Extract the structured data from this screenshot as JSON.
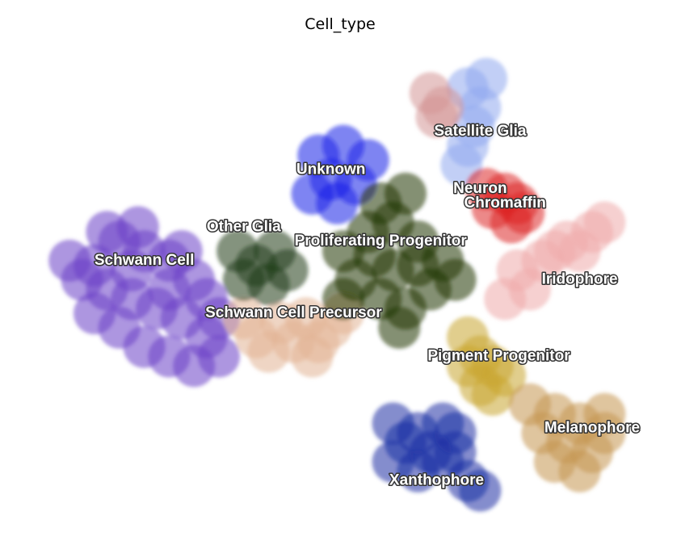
{
  "chart_data": {
    "type": "scatter",
    "title": "Cell_type",
    "xlabel": "",
    "ylabel": "",
    "grid": false,
    "legend": "on data",
    "xlim": [
      0,
      100
    ],
    "ylim": [
      0,
      100
    ],
    "series": [
      {
        "name": "Schwann Cell",
        "color": "#6a3fc6",
        "points": [
          [
            10,
            55
          ],
          [
            14,
            60
          ],
          [
            18,
            58
          ],
          [
            22,
            56
          ],
          [
            26,
            52
          ],
          [
            12,
            50
          ],
          [
            16,
            48
          ],
          [
            20,
            46
          ],
          [
            24,
            44
          ],
          [
            28,
            40
          ],
          [
            30,
            36
          ],
          [
            26,
            34
          ],
          [
            22,
            36
          ],
          [
            18,
            38
          ],
          [
            14,
            42
          ],
          [
            10,
            45
          ],
          [
            8,
            52
          ],
          [
            12,
            62
          ],
          [
            17,
            63
          ],
          [
            24,
            58
          ],
          [
            28,
            48
          ],
          [
            6,
            56
          ],
          [
            16,
            54
          ],
          [
            22,
            50
          ],
          [
            30,
            44
          ]
        ]
      },
      {
        "name": "Schwann Cell Precursor",
        "color": "#e2b394",
        "points": [
          [
            36,
            40
          ],
          [
            40,
            43
          ],
          [
            44,
            44
          ],
          [
            48,
            42
          ],
          [
            38,
            37
          ],
          [
            42,
            39
          ],
          [
            46,
            39
          ],
          [
            34,
            44
          ],
          [
            50,
            45
          ],
          [
            45,
            36
          ]
        ]
      },
      {
        "name": "Other Glia",
        "color": "#1f3c1a",
        "points": [
          [
            33,
            58
          ],
          [
            36,
            55
          ],
          [
            39,
            58
          ],
          [
            34,
            52
          ],
          [
            38,
            51
          ],
          [
            41,
            54
          ]
        ]
      },
      {
        "name": "Unknown",
        "color": "#1a1fe8",
        "points": [
          [
            46,
            78
          ],
          [
            50,
            80
          ],
          [
            54,
            77
          ],
          [
            48,
            73
          ],
          [
            52,
            72
          ],
          [
            45,
            70
          ],
          [
            49,
            68
          ]
        ]
      },
      {
        "name": "Proliferating Progenitor",
        "color": "#203500",
        "points": [
          [
            50,
            58
          ],
          [
            54,
            62
          ],
          [
            58,
            64
          ],
          [
            62,
            60
          ],
          [
            66,
            56
          ],
          [
            64,
            50
          ],
          [
            60,
            46
          ],
          [
            56,
            48
          ],
          [
            52,
            52
          ],
          [
            58,
            54
          ],
          [
            62,
            55
          ],
          [
            55,
            57
          ],
          [
            56,
            68
          ],
          [
            60,
            70
          ],
          [
            68,
            52
          ],
          [
            50,
            48
          ],
          [
            59,
            42
          ]
        ]
      },
      {
        "name": "Satellite Glia",
        "color": "#90a8ee",
        "points": [
          [
            70,
            92
          ],
          [
            72,
            88
          ],
          [
            71,
            84
          ],
          [
            70,
            80
          ],
          [
            69,
            76
          ],
          [
            73,
            94
          ]
        ]
      },
      {
        "name": "Neuron",
        "color": "#d49696",
        "points": [
          [
            64,
            91
          ],
          [
            66,
            88
          ],
          [
            65,
            86
          ]
        ]
      },
      {
        "name": "Chromaffin",
        "color": "#dd2424",
        "points": [
          [
            73,
            71
          ],
          [
            76,
            70
          ],
          [
            78,
            68
          ],
          [
            79,
            66
          ],
          [
            74,
            67
          ],
          [
            77,
            64
          ]
        ]
      },
      {
        "name": "Iridophore",
        "color": "#eeaaaa",
        "points": [
          [
            78,
            54
          ],
          [
            82,
            56
          ],
          [
            86,
            60
          ],
          [
            90,
            62
          ],
          [
            92,
            64
          ],
          [
            84,
            58
          ],
          [
            80,
            50
          ],
          [
            76,
            48
          ],
          [
            88,
            58
          ]
        ]
      },
      {
        "name": "Pigment Progenitor",
        "color": "#c9a530",
        "points": [
          [
            70,
            40
          ],
          [
            72,
            36
          ],
          [
            74,
            34
          ],
          [
            76,
            32
          ],
          [
            72,
            30
          ],
          [
            74,
            28
          ],
          [
            70,
            34
          ]
        ]
      },
      {
        "name": "Melanophore",
        "color": "#c59650",
        "points": [
          [
            80,
            26
          ],
          [
            84,
            24
          ],
          [
            88,
            22
          ],
          [
            92,
            20
          ],
          [
            86,
            18
          ],
          [
            90,
            16
          ],
          [
            84,
            14
          ],
          [
            88,
            12
          ],
          [
            82,
            20
          ],
          [
            92,
            24
          ]
        ]
      },
      {
        "name": "Xanthophore",
        "color": "#1c2fa4",
        "points": [
          [
            58,
            22
          ],
          [
            62,
            20
          ],
          [
            66,
            22
          ],
          [
            68,
            20
          ],
          [
            60,
            18
          ],
          [
            64,
            16
          ],
          [
            58,
            14
          ],
          [
            62,
            12
          ],
          [
            66,
            14
          ],
          [
            70,
            10
          ],
          [
            72,
            8
          ],
          [
            68,
            16
          ]
        ]
      }
    ],
    "labels": [
      {
        "text": "Satellite Glia",
        "x": 72,
        "y": 83
      },
      {
        "text": "Unknown",
        "x": 48,
        "y": 75
      },
      {
        "text": "Neuron",
        "x": 72,
        "y": 71
      },
      {
        "text": "Chromaffin",
        "x": 76,
        "y": 68
      },
      {
        "text": "Other Glia",
        "x": 34,
        "y": 63
      },
      {
        "text": "Proliferating Progenitor",
        "x": 56,
        "y": 60
      },
      {
        "text": "Schwann Cell",
        "x": 18,
        "y": 56
      },
      {
        "text": "Iridophore",
        "x": 88,
        "y": 52
      },
      {
        "text": "Schwann Cell Precursor",
        "x": 42,
        "y": 45
      },
      {
        "text": "Pigment Progenitor",
        "x": 75,
        "y": 36
      },
      {
        "text": "Melanophore",
        "x": 90,
        "y": 21
      },
      {
        "text": "Xanthophore",
        "x": 65,
        "y": 10
      }
    ]
  }
}
